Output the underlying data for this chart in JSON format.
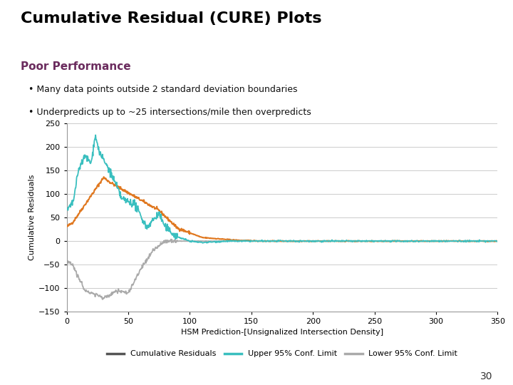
{
  "title": "Cumulative Residual (CURE) Plots",
  "subtitle": "Poor Performance",
  "bullet1": "• Many data points outside 2 standard deviation boundaries",
  "bullet2": "• Underpredicts up to ~25 intersections/mile then overpredicts",
  "xlabel": "HSM Prediction-[Unsignalized Intersection Density]",
  "ylabel": "Cumulative Residuals",
  "xlim": [
    0,
    350
  ],
  "ylim": [
    -150,
    250
  ],
  "yticks": [
    -150,
    -100,
    -50,
    0,
    50,
    100,
    150,
    200,
    250
  ],
  "xticks": [
    0,
    50,
    100,
    150,
    200,
    250,
    300,
    350
  ],
  "cure_color": "#E07820",
  "upper_color": "#3ABFBF",
  "lower_color": "#AAAAAA",
  "title_color": "#000000",
  "subtitle_color": "#6B2C5E",
  "page_number": "30",
  "background": "#FFFFFF",
  "title_fontsize": 16,
  "subtitle_fontsize": 11,
  "bullet_fontsize": 9,
  "tick_fontsize": 8,
  "label_fontsize": 8,
  "legend_fontsize": 8
}
